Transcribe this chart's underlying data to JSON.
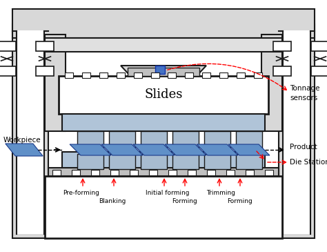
{
  "bg_color": "#ffffff",
  "fc": "#1a1a1a",
  "gray_frame": "#d8d8d8",
  "slide_color": "#c8d8e8",
  "die_color": "#b0c4d8",
  "punch_color": "#a8bcd0",
  "blue_part": "#4472c4",
  "light_blue_part": "#6090c8",
  "title": "Slides",
  "workpiece_label": "Workpiece",
  "product_label": "Product",
  "tonnage_label": "Tonnage\nsensors",
  "die_stations_label": "Die Stations"
}
